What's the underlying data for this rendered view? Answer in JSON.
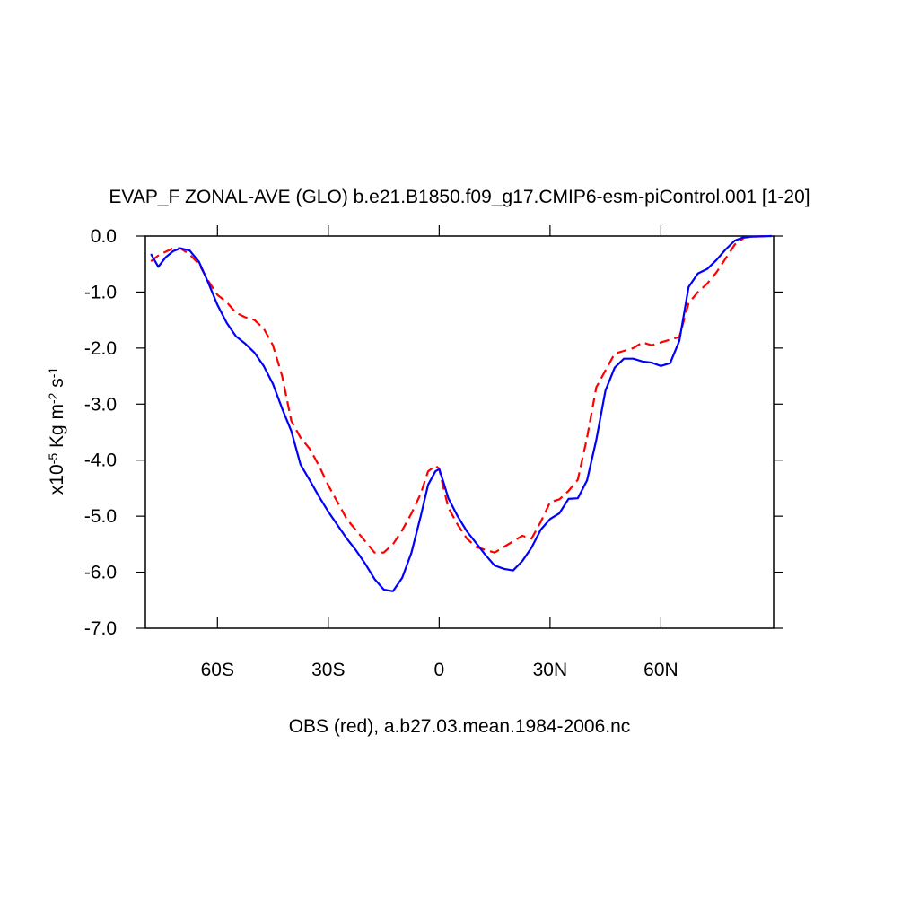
{
  "chart_data": {
    "type": "line",
    "title": "EVAP_F ZONAL-AVE (GLO) b.e21.B1850.f09_g17.CMIP6-esm-piControl.001 [1-20]",
    "ylabel": [
      "x10",
      "-5",
      " Kg m",
      "-2",
      " s",
      "-1"
    ],
    "xlabel": "OBS (red), a.b27.03.mean.1984-2006.nc",
    "xlim": [
      -79.5,
      90.5
    ],
    "xticks": [
      {
        "value": -60,
        "label": "60S"
      },
      {
        "value": -30,
        "label": "30S"
      },
      0,
      {
        "value": 30,
        "label": "30N"
      },
      {
        "value": 60,
        "label": "60N"
      }
    ],
    "ylim": [
      -7,
      0
    ],
    "yticks": [
      {
        "value": 0,
        "label": "0.0"
      },
      {
        "value": -1,
        "label": "-1.0"
      },
      {
        "value": -2,
        "label": "-2.0"
      },
      {
        "value": -3,
        "label": "-3.0"
      },
      {
        "value": -4,
        "label": "-4.0"
      },
      {
        "value": -5,
        "label": "-5.0"
      },
      {
        "value": -6,
        "label": "-6.0"
      },
      {
        "value": -7,
        "label": "-7.0"
      }
    ],
    "x": [
      -78,
      -76,
      -74,
      -72,
      -70,
      -67.5,
      -65,
      -62.5,
      -60,
      -57.5,
      -55,
      -52.5,
      -50,
      -47.5,
      -45,
      -42.5,
      -40,
      -37.5,
      -35,
      -32.5,
      -30,
      -27.5,
      -25,
      -22.5,
      -20,
      -17.5,
      -15,
      -12.5,
      -10,
      -7.5,
      -5,
      -3,
      -1,
      0,
      1,
      2.5,
      5,
      7.5,
      10,
      12.5,
      15,
      17.5,
      20,
      22.5,
      25,
      27.5,
      30,
      32.5,
      35,
      37.5,
      40,
      42.5,
      45,
      47.5,
      50,
      52.5,
      55,
      57.5,
      60,
      62.5,
      65,
      67.5,
      70,
      72.5,
      75,
      77.5,
      80,
      82.5,
      85,
      90
    ],
    "series": [
      {
        "color": "#0000ff",
        "dash": false,
        "values": [
          -0.32,
          -0.55,
          -0.38,
          -0.27,
          -0.22,
          -0.26,
          -0.46,
          -0.83,
          -1.23,
          -1.55,
          -1.79,
          -1.92,
          -2.08,
          -2.32,
          -2.64,
          -3.08,
          -3.48,
          -4.08,
          -4.36,
          -4.65,
          -4.92,
          -5.16,
          -5.4,
          -5.61,
          -5.85,
          -6.12,
          -6.31,
          -6.34,
          -6.1,
          -5.65,
          -5.0,
          -4.44,
          -4.2,
          -4.16,
          -4.36,
          -4.68,
          -5.0,
          -5.27,
          -5.48,
          -5.69,
          -5.88,
          -5.94,
          -5.97,
          -5.8,
          -5.56,
          -5.24,
          -5.05,
          -4.95,
          -4.69,
          -4.68,
          -4.36,
          -3.64,
          -2.76,
          -2.35,
          -2.19,
          -2.19,
          -2.24,
          -2.26,
          -2.32,
          -2.27,
          -1.87,
          -0.91,
          -0.67,
          -0.59,
          -0.43,
          -0.24,
          -0.08,
          -0.02,
          -0.01,
          0
        ]
      },
      {
        "color": "#ff0000",
        "dash": true,
        "values": [
          -0.45,
          -0.35,
          -0.28,
          -0.22,
          -0.22,
          -0.33,
          -0.5,
          -0.8,
          -1.05,
          -1.18,
          -1.37,
          -1.45,
          -1.5,
          -1.65,
          -1.95,
          -2.5,
          -3.3,
          -3.6,
          -3.8,
          -4.1,
          -4.45,
          -4.75,
          -5.05,
          -5.25,
          -5.45,
          -5.65,
          -5.65,
          -5.5,
          -5.25,
          -4.95,
          -4.6,
          -4.2,
          -4.1,
          -4.15,
          -4.45,
          -4.85,
          -5.15,
          -5.4,
          -5.55,
          -5.6,
          -5.65,
          -5.55,
          -5.45,
          -5.35,
          -5.4,
          -5.1,
          -4.75,
          -4.7,
          -4.55,
          -4.35,
          -3.6,
          -2.7,
          -2.4,
          -2.1,
          -2.05,
          -2.0,
          -1.9,
          -1.95,
          -1.9,
          -1.85,
          -1.8,
          -1.2,
          -1.0,
          -0.85,
          -0.65,
          -0.4,
          -0.15,
          -0.03,
          -0.01,
          0
        ]
      }
    ]
  }
}
